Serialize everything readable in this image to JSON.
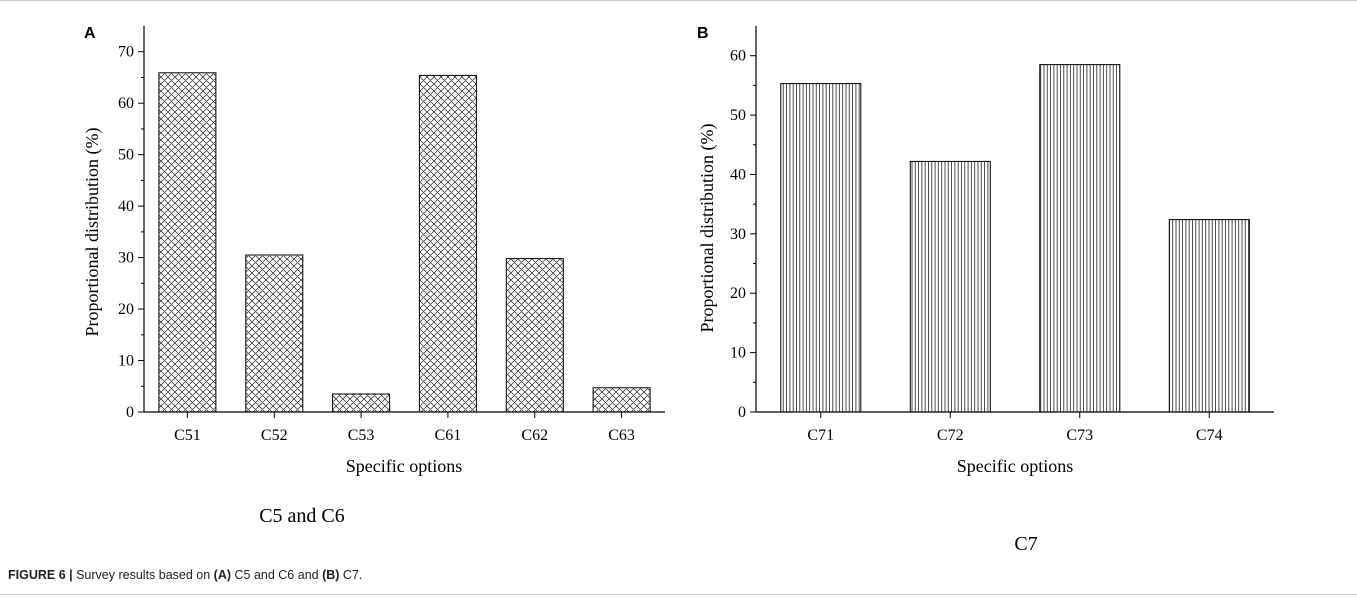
{
  "figure": {
    "caption": {
      "label": "FIGURE 6 |",
      "text1": " Survey results based on ",
      "a": "(A)",
      "text2": " C5 and C6 and ",
      "b": "(B)",
      "text3": " C7."
    }
  },
  "chart_data": [
    {
      "type": "bar",
      "panel_letter": "A",
      "subtitle": "C5 and C6",
      "xlabel": "Specific options",
      "ylabel": "Proportional distribution (%)",
      "categories": [
        "C51",
        "C52",
        "C53",
        "C61",
        "C62",
        "C63"
      ],
      "values": [
        65.9,
        30.5,
        3.5,
        65.4,
        29.8,
        4.7
      ],
      "ylim": [
        0,
        75
      ],
      "yticks": [
        0,
        10,
        20,
        30,
        40,
        50,
        60,
        70
      ],
      "fill_pattern": "crosshatch",
      "bar_color": "#000000",
      "grid": false
    },
    {
      "type": "bar",
      "panel_letter": "B",
      "subtitle": "C7",
      "xlabel": "Specific options",
      "ylabel": "Proportional distribution (%)",
      "categories": [
        "C71",
        "C72",
        "C73",
        "C74"
      ],
      "values": [
        55.3,
        42.2,
        58.5,
        32.4
      ],
      "ylim": [
        0,
        65
      ],
      "yticks": [
        0,
        10,
        20,
        30,
        40,
        50,
        60
      ],
      "fill_pattern": "vertical-lines",
      "bar_color": "#000000",
      "grid": false
    }
  ]
}
